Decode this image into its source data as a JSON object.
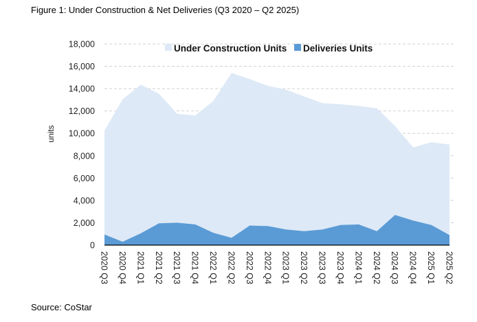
{
  "figure": {
    "title": "Figure 1: Under Construction & Net Deliveries (Q3 2020 – Q2 2025)",
    "source": "Source: CoStar"
  },
  "chart_data": {
    "type": "area",
    "title": "Figure 1: Under Construction & Net Deliveries (Q3 2020 – Q2 2025)",
    "xlabel": "",
    "ylabel": "units",
    "ylim": [
      0,
      18000
    ],
    "yticks": [
      0,
      2000,
      4000,
      6000,
      8000,
      10000,
      12000,
      14000,
      16000,
      18000
    ],
    "ytick_labels": [
      "0",
      "2,000",
      "4,000",
      "6,000",
      "8,000",
      "10,000",
      "12,000",
      "14,000",
      "16,000",
      "18,000"
    ],
    "grid": true,
    "legend_position": "top",
    "categories": [
      "2020 Q3",
      "2020 Q4",
      "2021 Q1",
      "2021 Q2",
      "2021 Q3",
      "2021 Q4",
      "2022 Q1",
      "2022 Q2",
      "2022 Q3",
      "2022 Q4",
      "2023 Q1",
      "2023 Q2",
      "2023 Q3",
      "2023 Q4",
      "2024 Q1",
      "2024 Q2",
      "2024 Q3",
      "2024 Q4",
      "2025 Q1",
      "2025 Q2"
    ],
    "series": [
      {
        "name": "Under Construction Units",
        "color": "#dde9f6",
        "values": [
          10250,
          13050,
          14350,
          13550,
          11750,
          11600,
          12900,
          15400,
          14850,
          14250,
          13900,
          13300,
          12700,
          12600,
          12450,
          12250,
          10650,
          8750,
          9200,
          9000
        ]
      },
      {
        "name": "Deliveries Units",
        "color": "#5b9bd5",
        "values": [
          950,
          300,
          1050,
          1950,
          2000,
          1850,
          1100,
          650,
          1750,
          1700,
          1400,
          1250,
          1400,
          1800,
          1850,
          1250,
          2700,
          2200,
          1800,
          900
        ]
      }
    ]
  }
}
